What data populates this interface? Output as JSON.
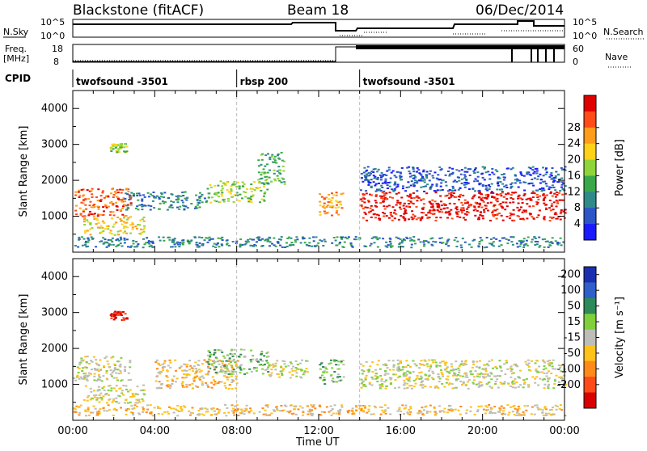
{
  "header": {
    "station": "Blackstone (fitACF)",
    "beam": "Beam 18",
    "date": "06/Dec/2014"
  },
  "top_panels": {
    "nsky_label": "N.Sky",
    "nsky_ticks": [
      "10^5",
      "10^0"
    ],
    "nsearch_label": "N.Search",
    "nsearch_ticks": [
      "10^5",
      "10^0"
    ],
    "freq_label": "Freq.",
    "freq_unit": "[MHz]",
    "freq_ticks": [
      "18",
      "8"
    ],
    "nave_label": "Nave",
    "nave_ticks": [
      "60",
      "0"
    ],
    "cpid_label": "CPID",
    "cpid_segments": [
      {
        "label": "twofsound -3501",
        "start_hour": 0.0
      },
      {
        "label": "rbsp 200",
        "start_hour": 8.0
      },
      {
        "label": "twofsound -3501",
        "start_hour": 14.0
      }
    ]
  },
  "chart_data": [
    {
      "type": "heatmap",
      "quantity": "power",
      "ylabel": "Slant Range [km]",
      "xlabel": "",
      "ylim": [
        0,
        4500
      ],
      "yticks": [
        "1000",
        "2000",
        "3000",
        "4000"
      ],
      "xlim_hours": [
        0,
        24
      ],
      "colorbar": {
        "label": "Power [dB]",
        "ticks": [
          "4",
          "8",
          "12",
          "16",
          "20",
          "24",
          "28"
        ],
        "colors": [
          "#1a1aff",
          "#2b55c8",
          "#2f8a8a",
          "#3aa84a",
          "#8fd43b",
          "#ffd21a",
          "#ff9c1a",
          "#ff4a1a",
          "#e00000"
        ]
      },
      "scatter_bands": [
        {
          "t0": 0.0,
          "t1": 2.8,
          "r0": 1000,
          "r1": 1800,
          "level": 7
        },
        {
          "t0": 0.5,
          "t1": 3.5,
          "r0": 500,
          "r1": 1000,
          "level": 5
        },
        {
          "t0": 1.8,
          "t1": 2.6,
          "r0": 2800,
          "r1": 3050,
          "level": 4
        },
        {
          "t0": 2.5,
          "t1": 6.5,
          "r0": 1200,
          "r1": 1700,
          "level": 2
        },
        {
          "t0": 6.5,
          "t1": 9.5,
          "r0": 1400,
          "r1": 2000,
          "level": 4
        },
        {
          "t0": 9.0,
          "t1": 10.3,
          "r0": 1900,
          "r1": 2800,
          "level": 3
        },
        {
          "t0": 12.0,
          "t1": 13.2,
          "r0": 1000,
          "r1": 1700,
          "level": 6
        },
        {
          "t0": 14.0,
          "t1": 24.0,
          "r0": 900,
          "r1": 1700,
          "level": 8
        },
        {
          "t0": 14.0,
          "t1": 24.0,
          "r0": 1700,
          "r1": 2400,
          "level": 1
        },
        {
          "t0": 0.0,
          "t1": 24.0,
          "r0": 150,
          "r1": 450,
          "level": 2
        }
      ]
    },
    {
      "type": "heatmap",
      "quantity": "velocity",
      "ylabel": "Slant Range [km]",
      "xlabel": "Time UT",
      "ylim": [
        0,
        4500
      ],
      "yticks": [
        "1000",
        "2000",
        "3000",
        "4000"
      ],
      "xlim_hours": [
        0,
        24
      ],
      "xticks": [
        "00:00",
        "04:00",
        "08:00",
        "12:00",
        "16:00",
        "20:00",
        "00:00"
      ],
      "colorbar": {
        "label": "Velocity [m s⁻¹]",
        "ticks": [
          "200",
          "100",
          "50",
          "15",
          "-15",
          "-50",
          "-100",
          "-200"
        ],
        "colors": [
          "#1a2fb0",
          "#2f5fc8",
          "#2f8a5a",
          "#7fd03b",
          "#bdbdb8",
          "#ffc21a",
          "#ff8a1a",
          "#ff4a1a",
          "#d80000"
        ]
      },
      "scatter_bands": [
        {
          "t0": 0.0,
          "t1": 2.8,
          "r0": 1100,
          "r1": 1800,
          "level": 4
        },
        {
          "t0": 0.5,
          "t1": 3.5,
          "r0": 500,
          "r1": 1000,
          "level": 4
        },
        {
          "t0": 1.8,
          "t1": 2.6,
          "r0": 2800,
          "r1": 3050,
          "level": 8
        },
        {
          "t0": 4.0,
          "t1": 8.0,
          "r0": 900,
          "r1": 1700,
          "level": 5
        },
        {
          "t0": 6.5,
          "t1": 9.5,
          "r0": 1300,
          "r1": 2000,
          "level": 3
        },
        {
          "t0": 9.5,
          "t1": 11.5,
          "r0": 1200,
          "r1": 1700,
          "level": 4
        },
        {
          "t0": 12.0,
          "t1": 13.2,
          "r0": 1000,
          "r1": 1700,
          "level": 3
        },
        {
          "t0": 14.0,
          "t1": 24.0,
          "r0": 900,
          "r1": 1700,
          "level": 4
        },
        {
          "t0": 0.0,
          "t1": 24.0,
          "r0": 150,
          "r1": 450,
          "level": 5
        }
      ]
    }
  ]
}
